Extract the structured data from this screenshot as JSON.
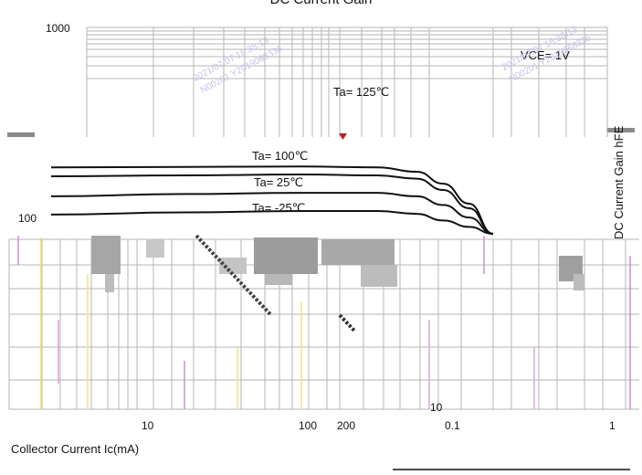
{
  "chart_data": {
    "type": "line",
    "title": "DC Current Gain",
    "xlabel": "Collector Current   Ic(mA)",
    "ylabel": "DC Current Gain  hFE",
    "xscale": "log",
    "yscale": "log",
    "xlim": [
      1,
      200
    ],
    "ylim": [
      100,
      1000
    ],
    "x_ticks": [
      "10",
      "100",
      "200"
    ],
    "y_ticks": [
      "1000",
      "100"
    ],
    "condition": "VCE= 1V",
    "grid": true,
    "series": [
      {
        "name": "Ta= 125℃",
        "x": [
          1,
          5,
          20,
          50,
          80,
          110,
          150,
          200
        ],
        "y": [
          210,
          211,
          212,
          210,
          200,
          175,
          140,
          100
        ]
      },
      {
        "name": "Ta= 100℃",
        "x": [
          1,
          5,
          20,
          50,
          80,
          110,
          150,
          200
        ],
        "y": [
          190,
          192,
          194,
          192,
          185,
          163,
          133,
          100
        ]
      },
      {
        "name": "Ta= 25℃",
        "x": [
          1,
          5,
          20,
          50,
          80,
          110,
          150,
          200
        ],
        "y": [
          152,
          156,
          158,
          158,
          152,
          138,
          120,
          100
        ]
      },
      {
        "name": "Ta= -25℃",
        "x": [
          1,
          5,
          20,
          50,
          80,
          110,
          150,
          200
        ],
        "y": [
          124,
          127,
          129,
          129,
          125,
          116,
          108,
          100
        ]
      }
    ],
    "overlay_ticks": [
      "10",
      "0.1",
      "1"
    ],
    "watermark": [
      "2021/07/07 16:38:13",
      "N00201 Y2019068336"
    ],
    "line_color": "#111111",
    "grid_color": "#b5b5b5"
  }
}
